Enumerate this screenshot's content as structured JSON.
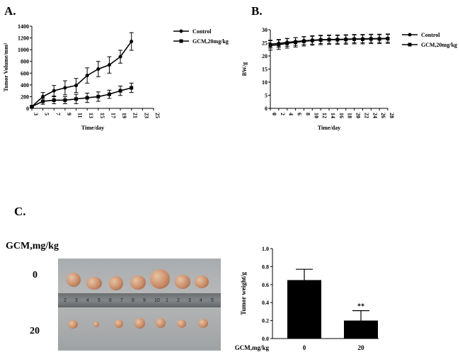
{
  "panels": {
    "a": {
      "letter": "A."
    },
    "b": {
      "letter": "B."
    },
    "c": {
      "letter": "C."
    }
  },
  "photo": {
    "row_header": "GCM,mg/kg",
    "row_labels": [
      "0",
      "20"
    ],
    "ruler_numbers": [
      "2",
      "3",
      "4",
      "5",
      "6",
      "7",
      "8",
      "9",
      "10",
      "1",
      "2",
      "3",
      "4",
      "5"
    ],
    "tumor_color": "#c98c68"
  },
  "chart_data": [
    {
      "type": "line",
      "title": "",
      "xlabel": "Time/day",
      "ylabel": "Tumor Volume/mm³",
      "xlim": [
        3,
        25
      ],
      "ylim": [
        0,
        1400
      ],
      "xticks": [
        3,
        5,
        7,
        9,
        11,
        13,
        15,
        17,
        19,
        21,
        23,
        25
      ],
      "yticks": [
        0,
        200,
        400,
        600,
        800,
        1000,
        1200,
        1400
      ],
      "legend_position": "right",
      "series": [
        {
          "name": "Control",
          "marker": "circle",
          "x": [
            3,
            5,
            7,
            9,
            11,
            13,
            15,
            17,
            19,
            21
          ],
          "y": [
            30,
            200,
            300,
            350,
            390,
            560,
            670,
            740,
            880,
            1140
          ],
          "err": [
            10,
            70,
            90,
            120,
            120,
            130,
            130,
            140,
            110,
            150
          ]
        },
        {
          "name": "GCM,20mg/kg",
          "marker": "square",
          "x": [
            3,
            5,
            7,
            9,
            11,
            13,
            15,
            17,
            19,
            21
          ],
          "y": [
            30,
            120,
            140,
            140,
            160,
            180,
            200,
            240,
            300,
            350
          ],
          "err": [
            10,
            50,
            60,
            60,
            80,
            80,
            80,
            70,
            80,
            80
          ]
        }
      ]
    },
    {
      "type": "line",
      "title": "",
      "xlabel": "Time/day",
      "ylabel": "BW/g",
      "xlim": [
        0,
        28
      ],
      "ylim": [
        0,
        30
      ],
      "xticks": [
        0,
        2,
        4,
        6,
        8,
        10,
        12,
        14,
        16,
        18,
        20,
        22,
        24,
        26,
        28
      ],
      "yticks": [
        0,
        5,
        10,
        15,
        20,
        25,
        30
      ],
      "legend_position": "right",
      "series": [
        {
          "name": "Control",
          "marker": "circle",
          "x": [
            0,
            2,
            4,
            6,
            8,
            10,
            12,
            14,
            16,
            18,
            20,
            22,
            24,
            26,
            28
          ],
          "y": [
            24.5,
            24.8,
            25.2,
            25.5,
            25.8,
            26,
            26.2,
            26.3,
            26.3,
            26.4,
            26.5,
            26.5,
            26.6,
            26.6,
            26.7
          ],
          "err": [
            1.5,
            1.5,
            1.5,
            1.5,
            1.5,
            1.5,
            1.5,
            1.5,
            1.5,
            1.5,
            1.5,
            1.5,
            1.5,
            1.5,
            1.5
          ]
        },
        {
          "name": "GCM,20mg/kg",
          "marker": "square",
          "x": [
            0,
            2,
            4,
            6,
            8,
            10,
            12,
            14,
            16,
            18,
            20,
            22,
            24,
            26,
            28
          ],
          "y": [
            24,
            24.3,
            24.8,
            25.2,
            25.6,
            25.9,
            26.1,
            26.2,
            26.2,
            26.3,
            26.4,
            26.4,
            26.5,
            26.5,
            26.6
          ],
          "err": [
            1.8,
            1.8,
            1.8,
            1.8,
            1.8,
            1.8,
            1.8,
            1.8,
            1.8,
            1.8,
            1.8,
            1.8,
            1.8,
            1.8,
            1.8
          ]
        }
      ]
    },
    {
      "type": "bar",
      "title": "",
      "xlabel": "GCM,mg/kg",
      "ylabel": "Tumor weight/g",
      "categories": [
        "0",
        "20"
      ],
      "values": [
        0.65,
        0.2
      ],
      "err": [
        0.12,
        0.11
      ],
      "annotations": [
        "",
        "**"
      ],
      "ylim": [
        0,
        1.0
      ],
      "yticks": [
        0.0,
        0.2,
        0.4,
        0.6,
        0.8,
        1.0
      ],
      "bar_color": "#000000"
    }
  ]
}
